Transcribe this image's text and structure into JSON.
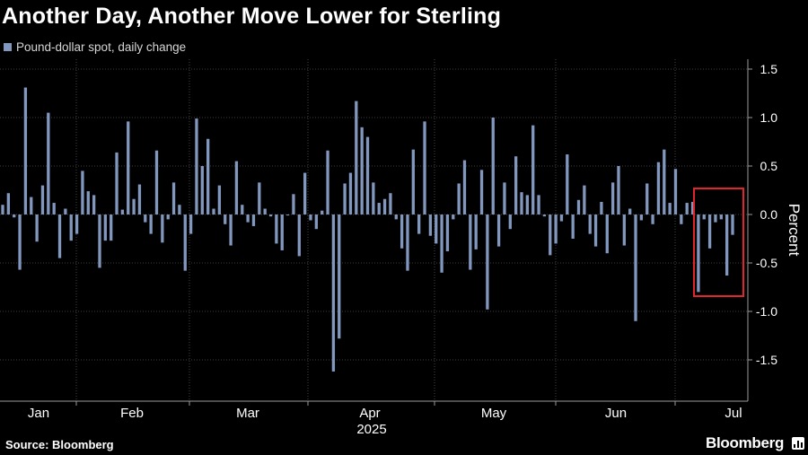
{
  "title": "Another Day, Another Move Lower for Sterling",
  "source": "Source: Bloomberg",
  "brand": "Bloomberg",
  "chart_data": {
    "type": "bar",
    "series_name": "Pound-dollar spot, daily change",
    "ylabel": "Percent",
    "xlabel": "",
    "year_label": "2025",
    "ylim": [
      -1.9,
      1.6
    ],
    "yticks": [
      1.5,
      1.0,
      0.5,
      0.0,
      -0.5,
      -1.0,
      -1.5
    ],
    "ytick_labels": [
      "1.5",
      "1.0",
      "0.5",
      "0.0",
      "-0.5",
      "-1.0",
      "-1.5"
    ],
    "months": [
      "Jan",
      "Feb",
      "Mar",
      "Apr",
      "May",
      "Jun",
      "Jul"
    ],
    "bar_color": "#8197bd",
    "highlight_color": "#e0262b",
    "highlight": "last 9 trading days (July)",
    "values": [
      0.1,
      0.22,
      -0.03,
      -0.57,
      1.31,
      0.18,
      -0.28,
      0.3,
      1.05,
      0.12,
      -0.45,
      0.06,
      -0.27,
      -0.2,
      0.45,
      0.24,
      0.2,
      -0.55,
      -0.27,
      -0.27,
      0.64,
      0.05,
      0.96,
      0.16,
      0.31,
      -0.08,
      -0.2,
      0.66,
      -0.29,
      -0.05,
      0.33,
      0.1,
      -0.58,
      -0.2,
      0.99,
      0.5,
      0.78,
      0.06,
      0.3,
      -0.1,
      -0.32,
      0.55,
      0.1,
      -0.08,
      -0.12,
      0.33,
      0.06,
      -0.02,
      -0.3,
      -0.37,
      -0.01,
      0.21,
      -0.43,
      0.43,
      -0.06,
      -0.15,
      0.04,
      0.66,
      -1.62,
      -1.28,
      0.32,
      0.43,
      1.17,
      0.9,
      0.8,
      0.33,
      0.12,
      0.16,
      0.22,
      -0.05,
      -0.35,
      -0.58,
      0.67,
      -0.2,
      0.96,
      -0.22,
      -0.3,
      -0.6,
      -0.38,
      -0.05,
      0.32,
      0.56,
      -0.57,
      -0.36,
      0.46,
      -0.98,
      1.0,
      -0.33,
      0.33,
      -0.15,
      0.6,
      0.23,
      0.2,
      0.92,
      0.2,
      -0.02,
      -0.42,
      -0.3,
      -0.07,
      0.62,
      -0.25,
      0.15,
      0.3,
      -0.2,
      -0.33,
      0.13,
      -0.4,
      0.33,
      0.5,
      -0.32,
      0.06,
      -1.1,
      -0.06,
      0.32,
      -0.1,
      0.54,
      0.67,
      0.12,
      0.47,
      -0.1,
      0.12,
      0.13,
      -0.8,
      -0.05,
      -0.35,
      -0.08,
      -0.05,
      -0.63,
      -0.21
    ]
  }
}
